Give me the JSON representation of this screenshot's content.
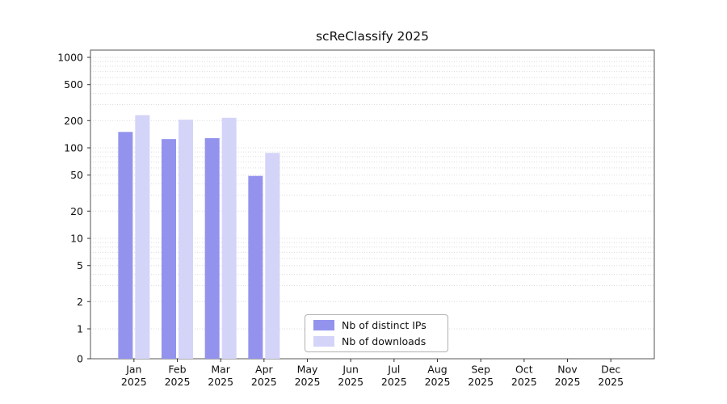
{
  "chart_data": {
    "type": "bar",
    "title": "scReClassify 2025",
    "categories": [
      "Jan",
      "Feb",
      "Mar",
      "Apr",
      "May",
      "Jun",
      "Jul",
      "Aug",
      "Sep",
      "Oct",
      "Nov",
      "Dec"
    ],
    "year": "2025",
    "y_scale": "symlog",
    "y_ticks": [
      0,
      1,
      2,
      5,
      10,
      20,
      50,
      100,
      200,
      500,
      1000
    ],
    "ylim": [
      0,
      1200
    ],
    "grid": true,
    "legend_position": "bottom-center",
    "series": [
      {
        "key": "distinct_ips",
        "name": "Nb of distinct IPs",
        "color": "#9393ee",
        "values": [
          150,
          125,
          128,
          49,
          0,
          0,
          0,
          0,
          0,
          0,
          0,
          0
        ]
      },
      {
        "key": "downloads",
        "name": "Nb of downloads",
        "color": "#d4d4f9",
        "values": [
          230,
          205,
          215,
          88,
          0,
          0,
          0,
          0,
          0,
          0,
          0,
          0
        ]
      }
    ]
  }
}
